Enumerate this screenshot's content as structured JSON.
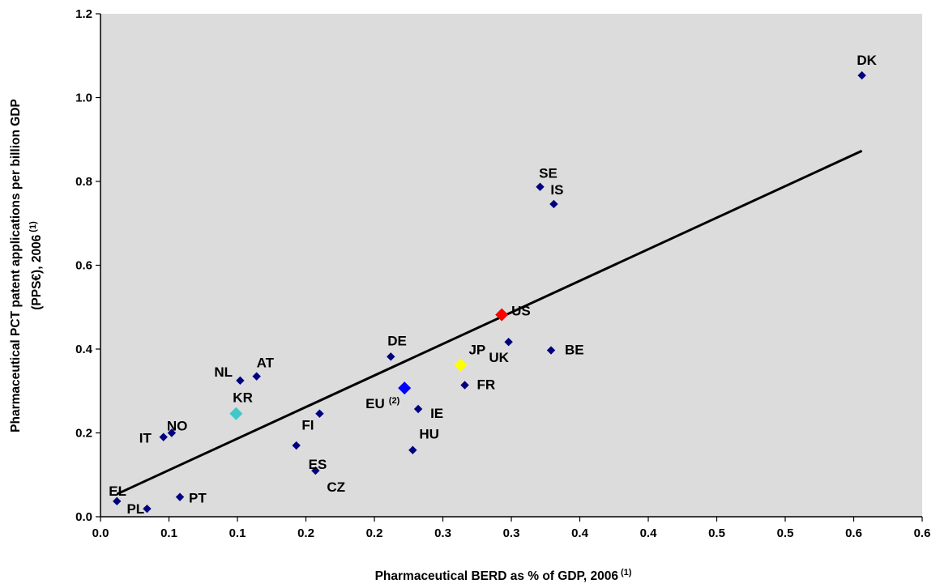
{
  "chart_data": {
    "type": "scatter",
    "xlabel": "Pharmaceutical BERD as % of GDP, 2006",
    "xlabel_sup": "(1)",
    "ylabel_line1": "Pharmaceutical PCT patent applications per billion GDP",
    "ylabel_line2": "(PPS€), 2006",
    "ylabel_sup": "(1)",
    "xlim": [
      0,
      0.6
    ],
    "ylim": [
      0,
      1.2
    ],
    "x_tick_values": [
      0,
      0.05,
      0.1,
      0.15,
      0.2,
      0.25,
      0.3,
      0.35,
      0.4,
      0.45,
      0.5,
      0.55,
      0.6
    ],
    "x_tick_labels": [
      "0.0",
      "0.1",
      "0.1",
      "0.2",
      "0.2",
      "0.3",
      "0.3",
      "0.4",
      "0.4",
      "0.5",
      "0.5",
      "0.6",
      "0.6"
    ],
    "y_tick_values": [
      0,
      0.2,
      0.4,
      0.6,
      0.8,
      1.0,
      1.2
    ],
    "y_tick_labels": [
      "0.0",
      "0.2",
      "0.4",
      "0.6",
      "0.8",
      "1.0",
      "1.2"
    ],
    "plot_background": "#dcdcdc",
    "grid": false,
    "legend": "none",
    "points": [
      {
        "label": "DK",
        "x": 0.556,
        "y": 1.053,
        "color": "#000080",
        "shape": "diamond"
      },
      {
        "label": "SE",
        "x": 0.321,
        "y": 0.787,
        "color": "#000080",
        "shape": "diamond"
      },
      {
        "label": "IS",
        "x": 0.331,
        "y": 0.746,
        "color": "#000080",
        "shape": "diamond"
      },
      {
        "label": "US",
        "x": 0.293,
        "y": 0.482,
        "color": "#ff0000",
        "shape": "diamond",
        "emphasis": true
      },
      {
        "label": "UK",
        "x": 0.298,
        "y": 0.417,
        "color": "#000080",
        "shape": "diamond"
      },
      {
        "label": "BE",
        "x": 0.329,
        "y": 0.397,
        "color": "#000080",
        "shape": "diamond"
      },
      {
        "label": "JP",
        "x": 0.263,
        "y": 0.362,
        "color": "#ffff00",
        "shape": "diamond",
        "emphasis": true
      },
      {
        "label": "DE",
        "x": 0.212,
        "y": 0.382,
        "color": "#000080",
        "shape": "diamond"
      },
      {
        "label": "FR",
        "x": 0.266,
        "y": 0.314,
        "color": "#000080",
        "shape": "diamond"
      },
      {
        "label": "EU",
        "label_sup": "(2)",
        "x": 0.222,
        "y": 0.307,
        "color": "#0000ff",
        "shape": "diamond",
        "emphasis": true
      },
      {
        "label": "IE",
        "x": 0.232,
        "y": 0.257,
        "color": "#000080",
        "shape": "diamond"
      },
      {
        "label": "HU",
        "x": 0.228,
        "y": 0.159,
        "color": "#000080",
        "shape": "diamond"
      },
      {
        "label": "AT",
        "x": 0.114,
        "y": 0.335,
        "color": "#000080",
        "shape": "diamond"
      },
      {
        "label": "NL",
        "x": 0.102,
        "y": 0.325,
        "color": "#000080",
        "shape": "diamond"
      },
      {
        "label": "FI",
        "x": 0.16,
        "y": 0.246,
        "color": "#000080",
        "shape": "diamond"
      },
      {
        "label": "CZ",
        "x": 0.157,
        "y": 0.11,
        "color": "#000080",
        "shape": "diamond"
      },
      {
        "label": "KR",
        "x": 0.099,
        "y": 0.246,
        "color": "#40c8c8",
        "shape": "diamond",
        "emphasis": true
      },
      {
        "label": "ES",
        "x": 0.143,
        "y": 0.17,
        "color": "#000080",
        "shape": "diamond"
      },
      {
        "label": "NO",
        "x": 0.052,
        "y": 0.2,
        "color": "#000080",
        "shape": "diamond"
      },
      {
        "label": "IT",
        "x": 0.046,
        "y": 0.19,
        "color": "#000080",
        "shape": "diamond"
      },
      {
        "label": "EL",
        "x": 0.012,
        "y": 0.037,
        "color": "#000080",
        "shape": "diamond"
      },
      {
        "label": "PL",
        "x": 0.034,
        "y": 0.019,
        "color": "#000080",
        "shape": "diamond"
      },
      {
        "label": "PT",
        "x": 0.058,
        "y": 0.047,
        "color": "#000080",
        "shape": "diamond"
      }
    ],
    "trendline": {
      "type": "linear",
      "x": [
        0.012,
        0.556
      ],
      "y": [
        0.054,
        0.873
      ],
      "color": "#000000"
    }
  }
}
